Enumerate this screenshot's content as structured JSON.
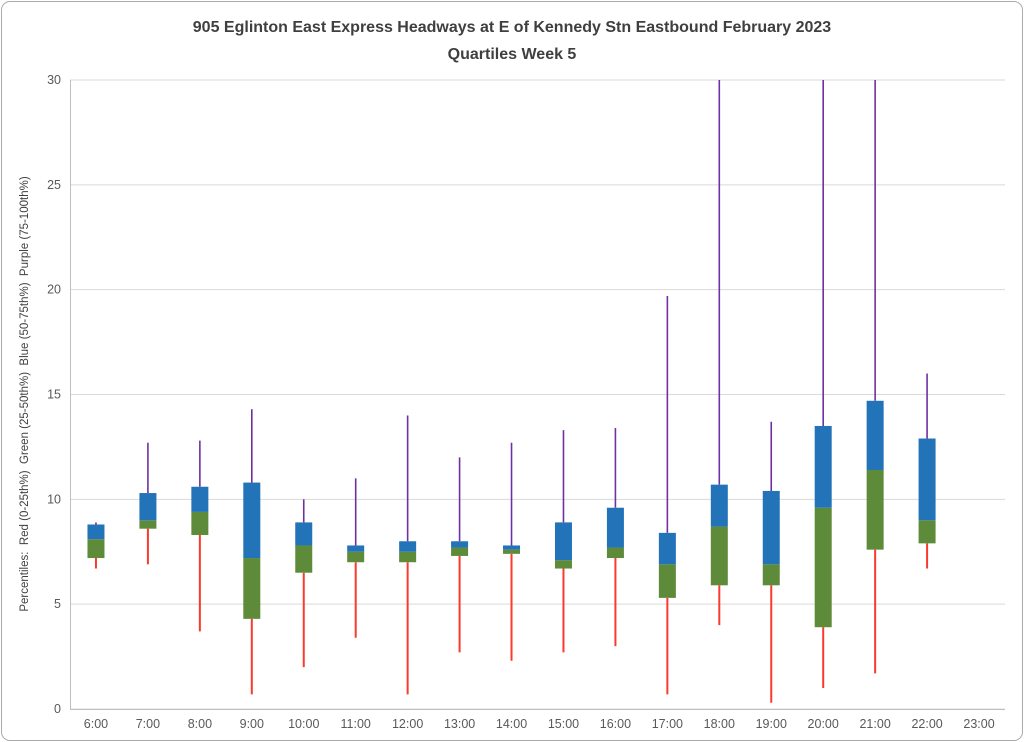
{
  "chart_data": {
    "type": "boxplot",
    "title": "905 Eglinton East Express Headways at E of Kennedy Stn Eastbound February 2023",
    "subtitle": "Quartiles Week 5",
    "ylabel": "Percentiles:  Red (0-25th%)  Green (25-50th%)  Blue (50-75th%)  Purple (75-100th%)",
    "ylim": [
      0,
      30
    ],
    "yticks": [
      0,
      5,
      10,
      15,
      20,
      25,
      30
    ],
    "grid": "on",
    "legend": "none",
    "categories": [
      "6:00",
      "7:00",
      "8:00",
      "9:00",
      "10:00",
      "11:00",
      "12:00",
      "13:00",
      "14:00",
      "15:00",
      "16:00",
      "17:00",
      "18:00",
      "19:00",
      "20:00",
      "21:00",
      "22:00",
      "23:00"
    ],
    "boxes": [
      {
        "hour": "6:00",
        "min": 6.7,
        "q1": 7.2,
        "q2": 8.1,
        "q3": 8.8,
        "max": 8.9
      },
      {
        "hour": "7:00",
        "min": 6.9,
        "q1": 8.6,
        "q2": 9.0,
        "q3": 10.3,
        "max": 12.7
      },
      {
        "hour": "8:00",
        "min": 3.7,
        "q1": 8.3,
        "q2": 9.4,
        "q3": 10.6,
        "max": 12.8
      },
      {
        "hour": "9:00",
        "min": 0.7,
        "q1": 4.3,
        "q2": 7.2,
        "q3": 10.8,
        "max": 14.3
      },
      {
        "hour": "10:00",
        "min": 2.0,
        "q1": 6.5,
        "q2": 7.8,
        "q3": 8.9,
        "max": 10.0
      },
      {
        "hour": "11:00",
        "min": 3.4,
        "q1": 7.0,
        "q2": 7.5,
        "q3": 7.8,
        "max": 11.0
      },
      {
        "hour": "12:00",
        "min": 0.7,
        "q1": 7.0,
        "q2": 7.5,
        "q3": 8.0,
        "max": 14.0
      },
      {
        "hour": "13:00",
        "min": 2.7,
        "q1": 7.3,
        "q2": 7.7,
        "q3": 8.0,
        "max": 12.0
      },
      {
        "hour": "14:00",
        "min": 2.3,
        "q1": 7.4,
        "q2": 7.6,
        "q3": 7.8,
        "max": 12.7
      },
      {
        "hour": "15:00",
        "min": 2.7,
        "q1": 6.7,
        "q2": 7.1,
        "q3": 8.9,
        "max": 13.3
      },
      {
        "hour": "16:00",
        "min": 3.0,
        "q1": 7.2,
        "q2": 7.7,
        "q3": 9.6,
        "max": 13.4
      },
      {
        "hour": "17:00",
        "min": 0.7,
        "q1": 5.3,
        "q2": 6.9,
        "q3": 8.4,
        "max": 19.7
      },
      {
        "hour": "18:00",
        "min": 4.0,
        "q1": 5.9,
        "q2": 8.7,
        "q3": 10.7,
        "max": 30.0
      },
      {
        "hour": "19:00",
        "min": 0.3,
        "q1": 5.9,
        "q2": 6.9,
        "q3": 10.4,
        "max": 13.7
      },
      {
        "hour": "20:00",
        "min": 1.0,
        "q1": 3.9,
        "q2": 9.6,
        "q3": 13.5,
        "max": 30.0
      },
      {
        "hour": "21:00",
        "min": 1.7,
        "q1": 7.6,
        "q2": 11.4,
        "q3": 14.7,
        "max": 30.0
      },
      {
        "hour": "22:00",
        "min": 6.7,
        "q1": 7.9,
        "q2": 9.0,
        "q3": 12.9,
        "max": 16.0
      },
      {
        "hour": "23:00",
        "min": null,
        "q1": null,
        "q2": null,
        "q3": null,
        "max": null
      }
    ],
    "colors": {
      "red": "#fb3a2e",
      "green": "#5e8b3a",
      "blue": "#2273b8",
      "purple": "#7030a0",
      "gridline": "#d9d9d9",
      "axis": "#bfbfbf",
      "tick_text": "#595959",
      "title_text": "#3f3f3f"
    }
  }
}
